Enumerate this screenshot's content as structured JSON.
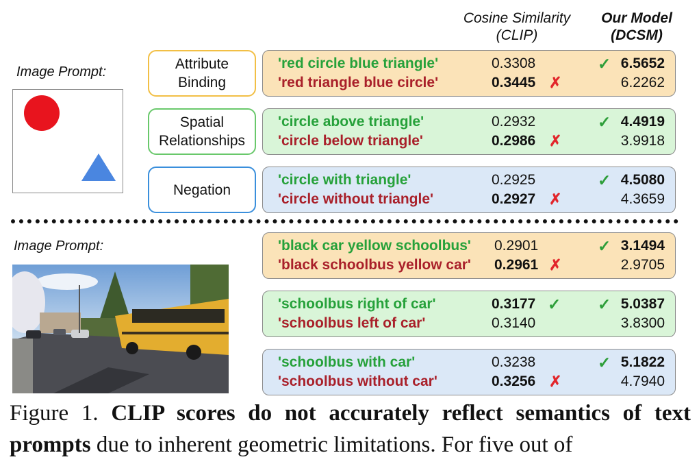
{
  "headers": {
    "clip": "Cosine Similarity (CLIP)",
    "clip_line1": "Cosine Similarity",
    "clip_line2": "(CLIP)",
    "ours_line1": "Our Model",
    "ours_line2": "(DCSM)"
  },
  "image_prompt_label": "Image Prompt:",
  "categories": [
    {
      "line1": "Attribute",
      "line2": "Binding"
    },
    {
      "line1": "Spatial",
      "line2": "Relationships"
    },
    {
      "line1": "Negation",
      "line2": ""
    }
  ],
  "rows": [
    {
      "prompt": "'red circle blue triangle'",
      "clip": "0.3308",
      "ours": "6.5652"
    },
    {
      "prompt": "'red triangle blue circle'",
      "clip": "0.3445",
      "ours": "6.2262"
    },
    {
      "prompt": "'circle above triangle'",
      "clip": "0.2932",
      "ours": "4.4919"
    },
    {
      "prompt": "'circle below triangle'",
      "clip": "0.2986",
      "ours": "3.9918"
    },
    {
      "prompt": "'circle with triangle'",
      "clip": "0.2925",
      "ours": "4.5080"
    },
    {
      "prompt": "'circle without triangle'",
      "clip": "0.2927",
      "ours": "4.3659"
    },
    {
      "prompt": "'black car yellow schoolbus'",
      "clip": "0.2901",
      "ours": "3.1494"
    },
    {
      "prompt": "'black schoolbus yellow car'",
      "clip": "0.2961",
      "ours": "2.9705"
    },
    {
      "prompt": "'schoolbus right of car'",
      "clip": "0.3177",
      "ours": "5.0387"
    },
    {
      "prompt": "'schoolbus left of car'",
      "clip": "0.3140",
      "ours": "3.8300"
    },
    {
      "prompt": "'schoolbus with car'",
      "clip": "0.3238",
      "ours": "5.1822"
    },
    {
      "prompt": "'schoolbus without car'",
      "clip": "0.3256",
      "ours": "4.7940"
    }
  ],
  "marks": {
    "check": "✓",
    "cross": "✗"
  },
  "colors": {
    "correct_prompt": "#26a13a",
    "wrong_prompt": "#a9202a",
    "attribute_box": "#fbe3b8",
    "spatial_box": "#d9f5d8",
    "negation_box": "#dbe8f7",
    "circle": "#e8141e",
    "triangle": "#4a86e0"
  },
  "caption": {
    "label": "Figure 1.",
    "bold": "CLIP scores do not accurately reflect semantics of text prompts",
    "rest": "due to inherent geometric limitations. For five out of"
  }
}
